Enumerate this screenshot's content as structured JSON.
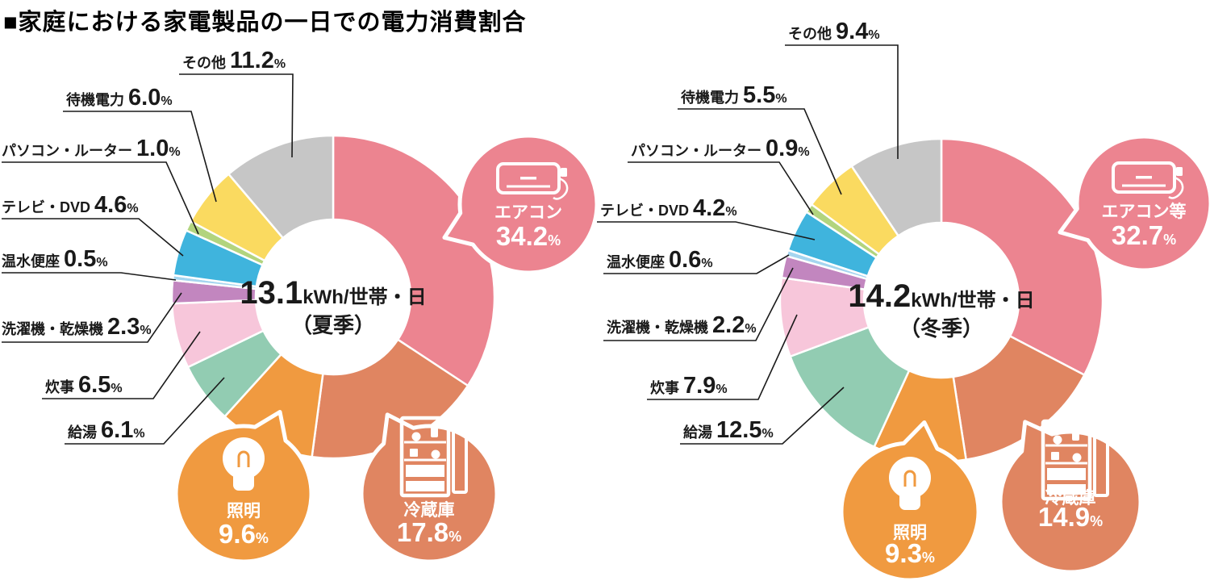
{
  "title": "■家庭における家電製品の一日での電力消費割合",
  "percent_symbol": "%",
  "chart_data": [
    {
      "type": "pie",
      "title": "13.1kWh/世帯・日（夏季）",
      "center_value": "13.1",
      "center_unit": "kWh/世帯・日",
      "season_label": "（夏季）",
      "legend": "none",
      "layout_hint": "donut, starts at 12 o'clock clockwise; top-3 slices shown as icon callout bubbles",
      "categories": [
        "エアコン",
        "冷蔵庫",
        "照明",
        "給湯",
        "炊事",
        "洗濯機・乾燥機",
        "温水便座",
        "テレビ・DVD",
        "パソコン・ルーター",
        "待機電力",
        "その他"
      ],
      "values": [
        34.2,
        17.8,
        9.6,
        6.1,
        6.5,
        2.3,
        0.5,
        4.6,
        1.0,
        6.0,
        11.2
      ],
      "colors": [
        "#ec8490",
        "#e08561",
        "#f09a40",
        "#92ccb2",
        "#f7c6da",
        "#c286bf",
        "#a5d5ef",
        "#3fb4dd",
        "#b2d47e",
        "#fada60",
        "#c6c6c6"
      ],
      "callout_icons": {
        "エアコン": "air-conditioner",
        "冷蔵庫": "refrigerator",
        "照明": "lightbulb"
      }
    },
    {
      "type": "pie",
      "title": "14.2kWh/世帯・日（冬季）",
      "center_value": "14.2",
      "center_unit": "kWh/世帯・日",
      "season_label": "（冬季）",
      "legend": "none",
      "layout_hint": "donut, starts at 12 o'clock clockwise; top-3 slices shown as icon callout bubbles",
      "categories": [
        "エアコン等",
        "冷蔵庫",
        "照明",
        "給湯",
        "炊事",
        "洗濯機・乾燥機",
        "温水便座",
        "テレビ・DVD",
        "パソコン・ルーター",
        "待機電力",
        "その他"
      ],
      "values": [
        32.7,
        14.9,
        9.3,
        12.5,
        7.9,
        2.2,
        0.6,
        4.2,
        0.9,
        5.5,
        9.4
      ],
      "colors": [
        "#ec8490",
        "#e08561",
        "#f09a40",
        "#92ccb2",
        "#f7c6da",
        "#c286bf",
        "#a5d5ef",
        "#3fb4dd",
        "#b2d47e",
        "#fada60",
        "#c6c6c6"
      ],
      "callout_icons": {
        "エアコン等": "air-conditioner",
        "冷蔵庫": "refrigerator",
        "照明": "lightbulb"
      }
    }
  ]
}
